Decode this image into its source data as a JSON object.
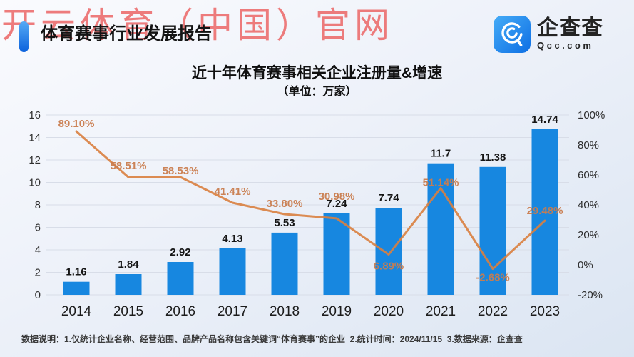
{
  "watermark": {
    "text": "开云体育（中国）官网",
    "color": "#ec6666"
  },
  "header": {
    "title": "体育赛事行业发展报告",
    "logo": {
      "name": "企查查",
      "domain": "Qcc.com",
      "icon": "qcc-magnifier-icon",
      "brand_color": "#1787e0"
    }
  },
  "chart": {
    "title": "近十年体育赛事相关企业注册量&增速",
    "subtitle": "（单位：万家）"
  },
  "chart_data": {
    "type": "bar+line",
    "title": "近十年体育赛事相关企业注册量&增速",
    "subtitle": "（单位：万家）",
    "categories": [
      "2014",
      "2015",
      "2016",
      "2017",
      "2018",
      "2019",
      "2020",
      "2021",
      "2022",
      "2023"
    ],
    "series": [
      {
        "name": "企业注册量（万家）",
        "type": "bar",
        "axis": "left",
        "color": "#1787e0",
        "values": [
          1.16,
          1.84,
          2.92,
          4.13,
          5.53,
          7.24,
          7.74,
          11.7,
          11.38,
          14.74
        ],
        "labels": [
          "1.16",
          "1.84",
          "2.92",
          "4.13",
          "5.53",
          "7.24",
          "7.74",
          "11.7",
          "11.38",
          "14.74"
        ]
      },
      {
        "name": "增速",
        "type": "line",
        "axis": "right",
        "color": "#d9803f",
        "label_color": "#c97c4e",
        "values": [
          89.1,
          58.51,
          58.53,
          41.41,
          33.8,
          30.98,
          6.89,
          51.14,
          -2.68,
          29.48
        ],
        "labels": [
          "89.10%",
          "58.51%",
          "58.53%",
          "41.41%",
          "33.80%",
          "30.98%",
          "6.89%",
          "51.14%",
          "-2.68%",
          "29.48%"
        ]
      }
    ],
    "left_axis": {
      "min": 0,
      "max": 16,
      "tick_values": [
        0,
        2,
        4,
        6,
        8,
        10,
        12,
        14,
        16
      ],
      "tick_labels": [
        "0",
        "2",
        "4",
        "6",
        "8",
        "10",
        "12",
        "14",
        "16"
      ]
    },
    "right_axis": {
      "min": -20,
      "max": 100,
      "tick_values": [
        -20,
        0,
        20,
        40,
        60,
        80,
        100
      ],
      "tick_labels": [
        "-20%",
        "0%",
        "20%",
        "40%",
        "60%",
        "80%",
        "100%"
      ]
    },
    "grid": true,
    "legend": "none",
    "grid_color": "#d8dde8"
  },
  "footer": {
    "note": "数据说明：1.仅统计企业名称、经营范围、品牌产品名称包含关键词“体育赛事”的企业  2.统计时间：2024/11/15  3.数据来源：企查查"
  }
}
